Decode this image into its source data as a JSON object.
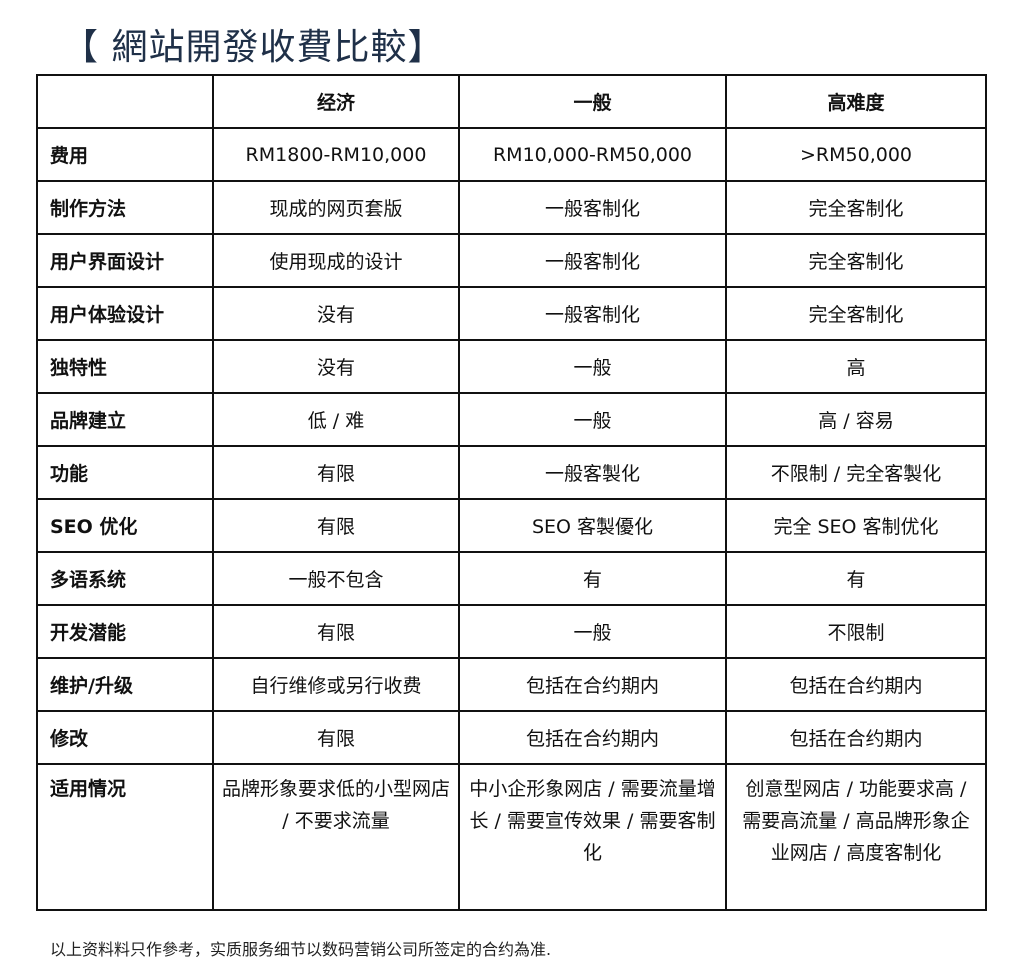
{
  "title": "【 網站開發收費比較】",
  "columns": [
    "",
    "经济",
    "一般",
    "高难度"
  ],
  "rows": [
    {
      "label": "费用",
      "values": [
        "RM1800-RM10,000",
        "RM10,000-RM50,000",
        ">RM50,000"
      ]
    },
    {
      "label": "制作方法",
      "values": [
        "现成的网页套版",
        "一般客制化",
        "完全客制化"
      ]
    },
    {
      "label": "用户界面设计",
      "values": [
        "使用现成的设计",
        "一般客制化",
        "完全客制化"
      ]
    },
    {
      "label": "用户体验设计",
      "values": [
        "没有",
        "一般客制化",
        "完全客制化"
      ]
    },
    {
      "label": "独特性",
      "values": [
        "没有",
        "一般",
        "高"
      ]
    },
    {
      "label": "品牌建立",
      "values": [
        "低 / 难",
        "一般",
        "高 / 容易"
      ]
    },
    {
      "label": "功能",
      "values": [
        "有限",
        "一般客製化",
        "不限制 / 完全客製化"
      ]
    },
    {
      "label": "SEO 优化",
      "values": [
        "有限",
        "SEO 客製優化",
        "完全 SEO 客制优化"
      ]
    },
    {
      "label": "多语系统",
      "values": [
        "一般不包含",
        "有",
        "有"
      ]
    },
    {
      "label": "开发潜能",
      "values": [
        "有限",
        "一般",
        "不限制"
      ]
    },
    {
      "label": "维护/升级",
      "values": [
        "自行维修或另行收费",
        "包括在合约期内",
        "包括在合约期内"
      ]
    },
    {
      "label": "修改",
      "values": [
        "有限",
        "包括在合约期内",
        "包括在合约期内"
      ]
    },
    {
      "label": "适用情况",
      "values": [
        "品牌形象要求低的小型网店 / 不要求流量",
        "中小企形象网店 / 需要流量增长 / 需要宣传效果 / 需要客制化",
        "创意型网店 / 功能要求高 / 需要高流量 / 高品牌形象企业网店 / 高度客制化"
      ]
    }
  ],
  "footnote": "以上资料料只作參考，实质服务细节以数码营销公司所签定的合约為准."
}
